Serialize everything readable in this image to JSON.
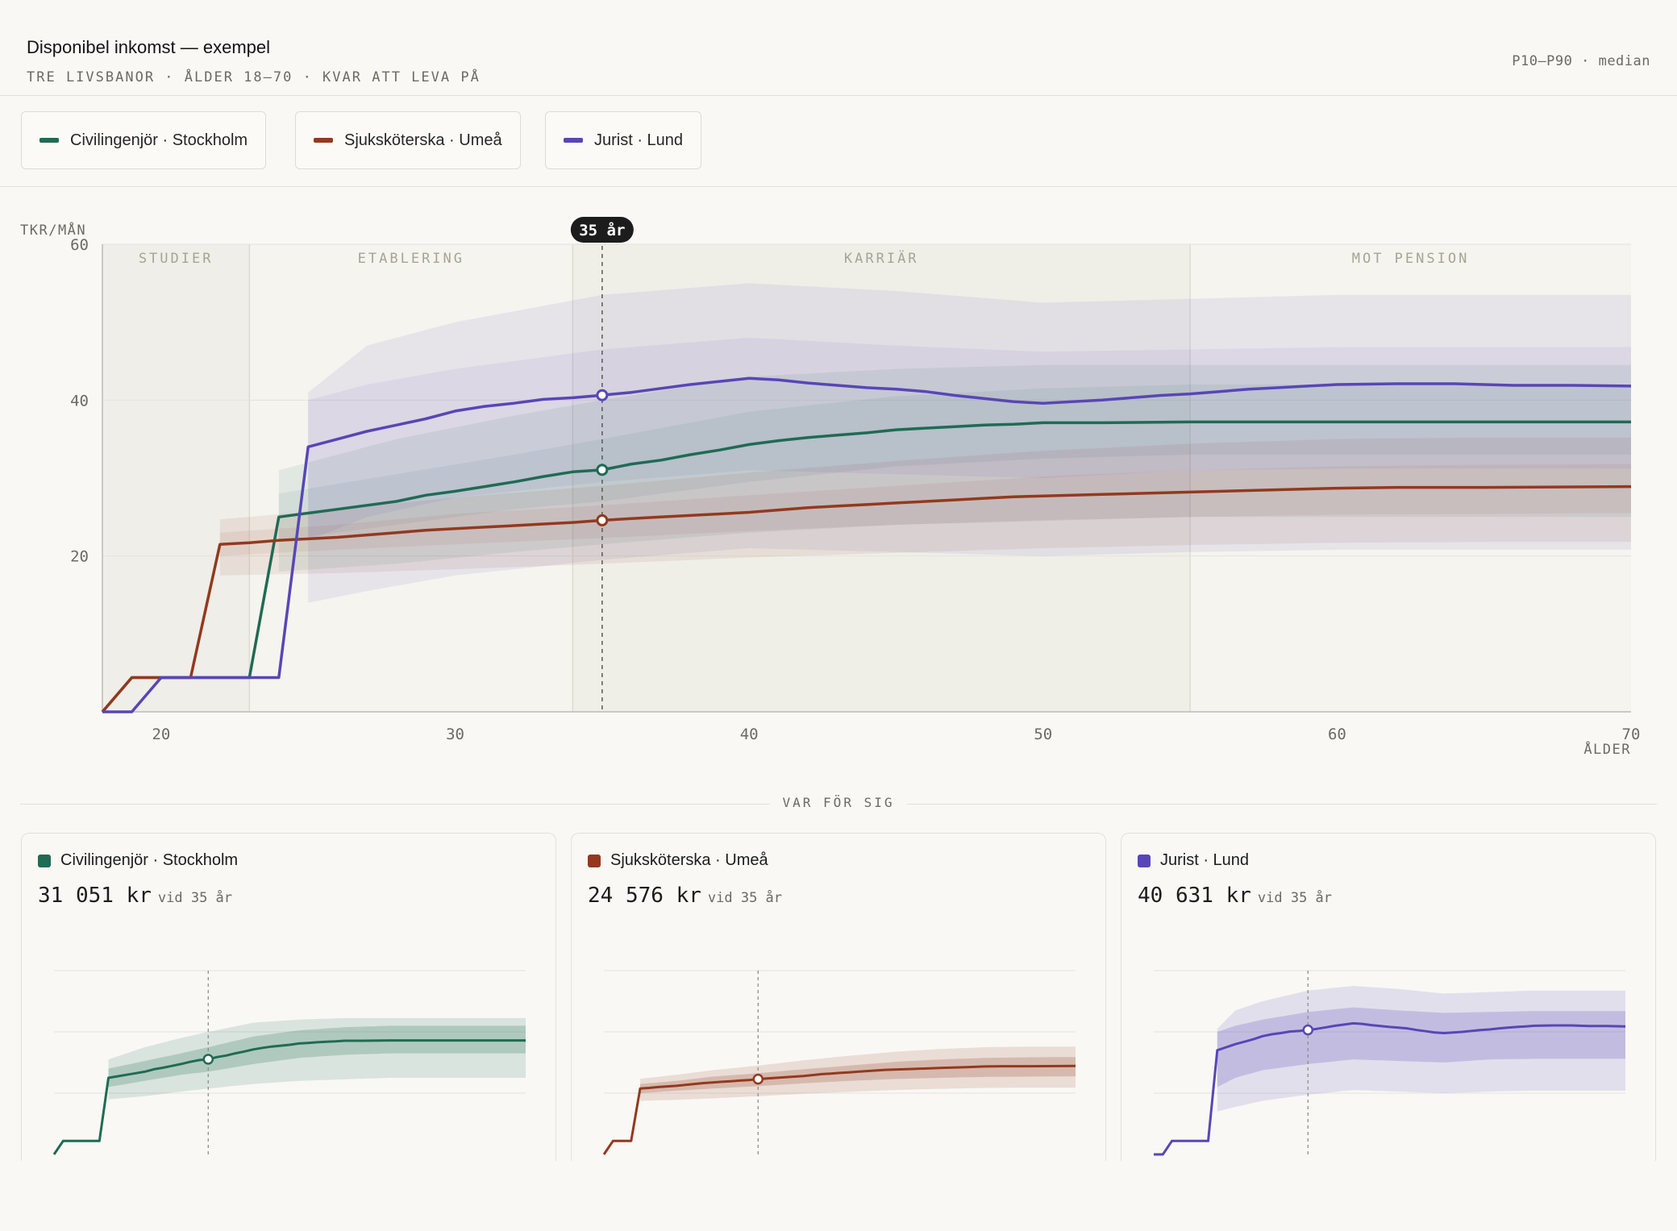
{
  "header": {
    "title": "Disponibel inkomst — exempel",
    "subtitle": "TRE LIVSBANOR · ÅLDER 18–70 · KVAR ATT LEVA PÅ",
    "range_label": "P10–P90 · median"
  },
  "legend": [
    {
      "label": "Civilingenjör · Stockholm",
      "color": "#1f6b54"
    },
    {
      "label": "Sjuksköterska · Umeå",
      "color": "#93391e"
    },
    {
      "label": "Jurist · Lund",
      "color": "#5846b6"
    }
  ],
  "chart_data": {
    "type": "line",
    "ylabel": "TKR/MÅN",
    "xlabel": "ÅLDER",
    "xlim": [
      18,
      70
    ],
    "ylim": [
      0,
      60
    ],
    "yticks": [
      20,
      40,
      60
    ],
    "xticks": [
      20,
      30,
      40,
      50,
      60,
      70
    ],
    "grid": true,
    "phases": [
      {
        "label": "STUDIER",
        "from": 18,
        "to": 23
      },
      {
        "label": "ETABLERING",
        "from": 23,
        "to": 34
      },
      {
        "label": "KARRIÄR",
        "from": 34,
        "to": 55
      },
      {
        "label": "MOT PENSION",
        "from": 55,
        "to": 70
      }
    ],
    "marker": {
      "age": 35,
      "label": "35 år"
    },
    "series": [
      {
        "name": "Civilingenjör · Stockholm",
        "color": "#1f6b54",
        "median": [
          [
            18,
            0
          ],
          [
            19,
            4.4
          ],
          [
            20,
            4.4
          ],
          [
            21,
            4.4
          ],
          [
            22,
            4.4
          ],
          [
            23,
            4.4
          ],
          [
            24,
            25
          ],
          [
            25,
            25.5
          ],
          [
            26,
            26
          ],
          [
            27,
            26.5
          ],
          [
            28,
            27
          ],
          [
            29,
            27.8
          ],
          [
            30,
            28.3
          ],
          [
            31,
            28.9
          ],
          [
            32,
            29.5
          ],
          [
            33,
            30.2
          ],
          [
            34,
            30.8
          ],
          [
            35,
            31.05
          ],
          [
            36,
            31.8
          ],
          [
            37,
            32.3
          ],
          [
            38,
            33
          ],
          [
            39,
            33.6
          ],
          [
            40,
            34.3
          ],
          [
            41,
            34.8
          ],
          [
            42,
            35.2
          ],
          [
            43,
            35.5
          ],
          [
            44,
            35.8
          ],
          [
            45,
            36.2
          ],
          [
            46,
            36.4
          ],
          [
            47,
            36.6
          ],
          [
            48,
            36.8
          ],
          [
            49,
            36.9
          ],
          [
            50,
            37.1
          ],
          [
            52,
            37.1
          ],
          [
            55,
            37.2
          ],
          [
            58,
            37.2
          ],
          [
            60,
            37.2
          ],
          [
            63,
            37.2
          ],
          [
            66,
            37.2
          ],
          [
            70,
            37.2
          ]
        ],
        "p25": [
          [
            24,
            22
          ],
          [
            28,
            24
          ],
          [
            32,
            26
          ],
          [
            35,
            27
          ],
          [
            40,
            29.5
          ],
          [
            45,
            31.5
          ],
          [
            50,
            32.5
          ],
          [
            55,
            33
          ],
          [
            60,
            33
          ],
          [
            65,
            33
          ],
          [
            70,
            33
          ]
        ],
        "p75": [
          [
            24,
            28
          ],
          [
            28,
            30.5
          ],
          [
            32,
            33
          ],
          [
            35,
            35
          ],
          [
            40,
            38.5
          ],
          [
            45,
            40.5
          ],
          [
            50,
            41.5
          ],
          [
            55,
            42
          ],
          [
            60,
            42
          ],
          [
            65,
            42
          ],
          [
            70,
            42
          ]
        ],
        "p10": [
          [
            24,
            18
          ],
          [
            28,
            19
          ],
          [
            32,
            20.5
          ],
          [
            35,
            21.5
          ],
          [
            40,
            23
          ],
          [
            45,
            24
          ],
          [
            50,
            24.5
          ],
          [
            55,
            25
          ],
          [
            60,
            25
          ],
          [
            65,
            25
          ],
          [
            70,
            25
          ]
        ],
        "p90": [
          [
            24,
            31
          ],
          [
            28,
            35
          ],
          [
            32,
            38
          ],
          [
            35,
            40
          ],
          [
            40,
            43
          ],
          [
            45,
            44
          ],
          [
            50,
            44.5
          ],
          [
            55,
            44.5
          ],
          [
            60,
            44.5
          ],
          [
            65,
            44.5
          ],
          [
            70,
            44.5
          ]
        ]
      },
      {
        "name": "Sjuksköterska · Umeå",
        "color": "#93391e",
        "median": [
          [
            18,
            0
          ],
          [
            19,
            4.4
          ],
          [
            20,
            4.4
          ],
          [
            21,
            4.4
          ],
          [
            22,
            21.5
          ],
          [
            23,
            21.7
          ],
          [
            24,
            22
          ],
          [
            25,
            22.2
          ],
          [
            26,
            22.4
          ],
          [
            27,
            22.7
          ],
          [
            28,
            23
          ],
          [
            29,
            23.3
          ],
          [
            30,
            23.5
          ],
          [
            31,
            23.7
          ],
          [
            32,
            23.9
          ],
          [
            33,
            24.1
          ],
          [
            34,
            24.3
          ],
          [
            35,
            24.58
          ],
          [
            36,
            24.8
          ],
          [
            37,
            25
          ],
          [
            38,
            25.2
          ],
          [
            39,
            25.4
          ],
          [
            40,
            25.6
          ],
          [
            41,
            25.9
          ],
          [
            42,
            26.2
          ],
          [
            43,
            26.4
          ],
          [
            44,
            26.6
          ],
          [
            45,
            26.8
          ],
          [
            46,
            27
          ],
          [
            47,
            27.2
          ],
          [
            48,
            27.4
          ],
          [
            49,
            27.6
          ],
          [
            50,
            27.7
          ],
          [
            52,
            27.9
          ],
          [
            55,
            28.2
          ],
          [
            58,
            28.5
          ],
          [
            60,
            28.7
          ],
          [
            62,
            28.8
          ],
          [
            65,
            28.8
          ],
          [
            70,
            28.9
          ]
        ],
        "p25": [
          [
            22,
            20
          ],
          [
            26,
            20.8
          ],
          [
            30,
            21.5
          ],
          [
            35,
            22.3
          ],
          [
            40,
            23.2
          ],
          [
            45,
            24
          ],
          [
            50,
            24.6
          ],
          [
            55,
            25
          ],
          [
            60,
            25.3
          ],
          [
            65,
            25.4
          ],
          [
            70,
            25.5
          ]
        ],
        "p75": [
          [
            22,
            23
          ],
          [
            26,
            24
          ],
          [
            30,
            25.4
          ],
          [
            35,
            26.5
          ],
          [
            40,
            27.8
          ],
          [
            45,
            29
          ],
          [
            50,
            30.2
          ],
          [
            55,
            31
          ],
          [
            60,
            31.5
          ],
          [
            65,
            31.7
          ],
          [
            70,
            31.8
          ]
        ],
        "p10": [
          [
            22,
            17.5
          ],
          [
            26,
            17.8
          ],
          [
            30,
            18.3
          ],
          [
            35,
            19
          ],
          [
            40,
            19.8
          ],
          [
            45,
            20.4
          ],
          [
            50,
            21
          ],
          [
            55,
            21.4
          ],
          [
            60,
            21.7
          ],
          [
            65,
            21.8
          ],
          [
            70,
            21.8
          ]
        ],
        "p90": [
          [
            22,
            24.7
          ],
          [
            26,
            26
          ],
          [
            30,
            27.5
          ],
          [
            35,
            29
          ],
          [
            40,
            30.7
          ],
          [
            45,
            32.2
          ],
          [
            50,
            33.5
          ],
          [
            55,
            34.4
          ],
          [
            60,
            35
          ],
          [
            65,
            35.2
          ],
          [
            70,
            35.2
          ]
        ]
      },
      {
        "name": "Jurist · Lund",
        "color": "#5846b6",
        "median": [
          [
            18,
            0
          ],
          [
            19,
            0
          ],
          [
            20,
            4.4
          ],
          [
            21,
            4.4
          ],
          [
            22,
            4.4
          ],
          [
            23,
            4.4
          ],
          [
            24,
            4.4
          ],
          [
            25,
            34
          ],
          [
            26,
            35
          ],
          [
            27,
            36
          ],
          [
            28,
            36.8
          ],
          [
            29,
            37.6
          ],
          [
            30,
            38.6
          ],
          [
            31,
            39.2
          ],
          [
            32,
            39.6
          ],
          [
            33,
            40.1
          ],
          [
            34,
            40.3
          ],
          [
            35,
            40.63
          ],
          [
            36,
            41
          ],
          [
            37,
            41.5
          ],
          [
            38,
            42
          ],
          [
            39,
            42.4
          ],
          [
            40,
            42.8
          ],
          [
            41,
            42.6
          ],
          [
            42,
            42.2
          ],
          [
            43,
            41.9
          ],
          [
            44,
            41.6
          ],
          [
            45,
            41.4
          ],
          [
            46,
            41.1
          ],
          [
            47,
            40.6
          ],
          [
            48,
            40.2
          ],
          [
            49,
            39.8
          ],
          [
            50,
            39.6
          ],
          [
            51,
            39.8
          ],
          [
            52,
            40
          ],
          [
            53,
            40.3
          ],
          [
            54,
            40.6
          ],
          [
            55,
            40.8
          ],
          [
            56,
            41.1
          ],
          [
            57,
            41.4
          ],
          [
            58,
            41.6
          ],
          [
            59,
            41.8
          ],
          [
            60,
            42
          ],
          [
            62,
            42.1
          ],
          [
            64,
            42.1
          ],
          [
            66,
            41.9
          ],
          [
            68,
            41.9
          ],
          [
            70,
            41.8
          ]
        ],
        "p25": [
          [
            25,
            22
          ],
          [
            27,
            25
          ],
          [
            30,
            27.5
          ],
          [
            35,
            29.5
          ],
          [
            40,
            31
          ],
          [
            45,
            30.5
          ],
          [
            50,
            30
          ],
          [
            55,
            31
          ],
          [
            60,
            31.2
          ],
          [
            65,
            31.2
          ],
          [
            70,
            31.2
          ]
        ],
        "p75": [
          [
            25,
            40
          ],
          [
            27,
            42
          ],
          [
            30,
            44
          ],
          [
            35,
            46.5
          ],
          [
            40,
            48
          ],
          [
            45,
            47
          ],
          [
            50,
            46.2
          ],
          [
            55,
            46.5
          ],
          [
            60,
            46.8
          ],
          [
            65,
            46.8
          ],
          [
            70,
            46.8
          ]
        ],
        "p10": [
          [
            25,
            14
          ],
          [
            27,
            15.5
          ],
          [
            30,
            17.5
          ],
          [
            35,
            19.5
          ],
          [
            40,
            21
          ],
          [
            45,
            20.5
          ],
          [
            50,
            20
          ],
          [
            55,
            20.5
          ],
          [
            60,
            20.8
          ],
          [
            65,
            20.8
          ],
          [
            70,
            20.8
          ]
        ],
        "p90": [
          [
            25,
            41
          ],
          [
            27,
            47
          ],
          [
            30,
            50
          ],
          [
            35,
            53.5
          ],
          [
            40,
            55
          ],
          [
            45,
            54
          ],
          [
            50,
            52.5
          ],
          [
            55,
            53
          ],
          [
            60,
            53.5
          ],
          [
            65,
            53.5
          ],
          [
            70,
            53.5
          ]
        ]
      }
    ]
  },
  "section_label": "VAR FÖR SIG",
  "cards": [
    {
      "name": "Civilingenjör · Stockholm",
      "value": "31 051",
      "unit": "kr",
      "note": "vid 35 år",
      "color": "#1f6b54"
    },
    {
      "name": "Sjuksköterska · Umeå",
      "value": "24 576",
      "unit": "kr",
      "note": "vid 35 år",
      "color": "#93391e"
    },
    {
      "name": "Jurist · Lund",
      "value": "40 631",
      "unit": "kr",
      "note": "vid 35 år",
      "color": "#5846b6"
    }
  ]
}
